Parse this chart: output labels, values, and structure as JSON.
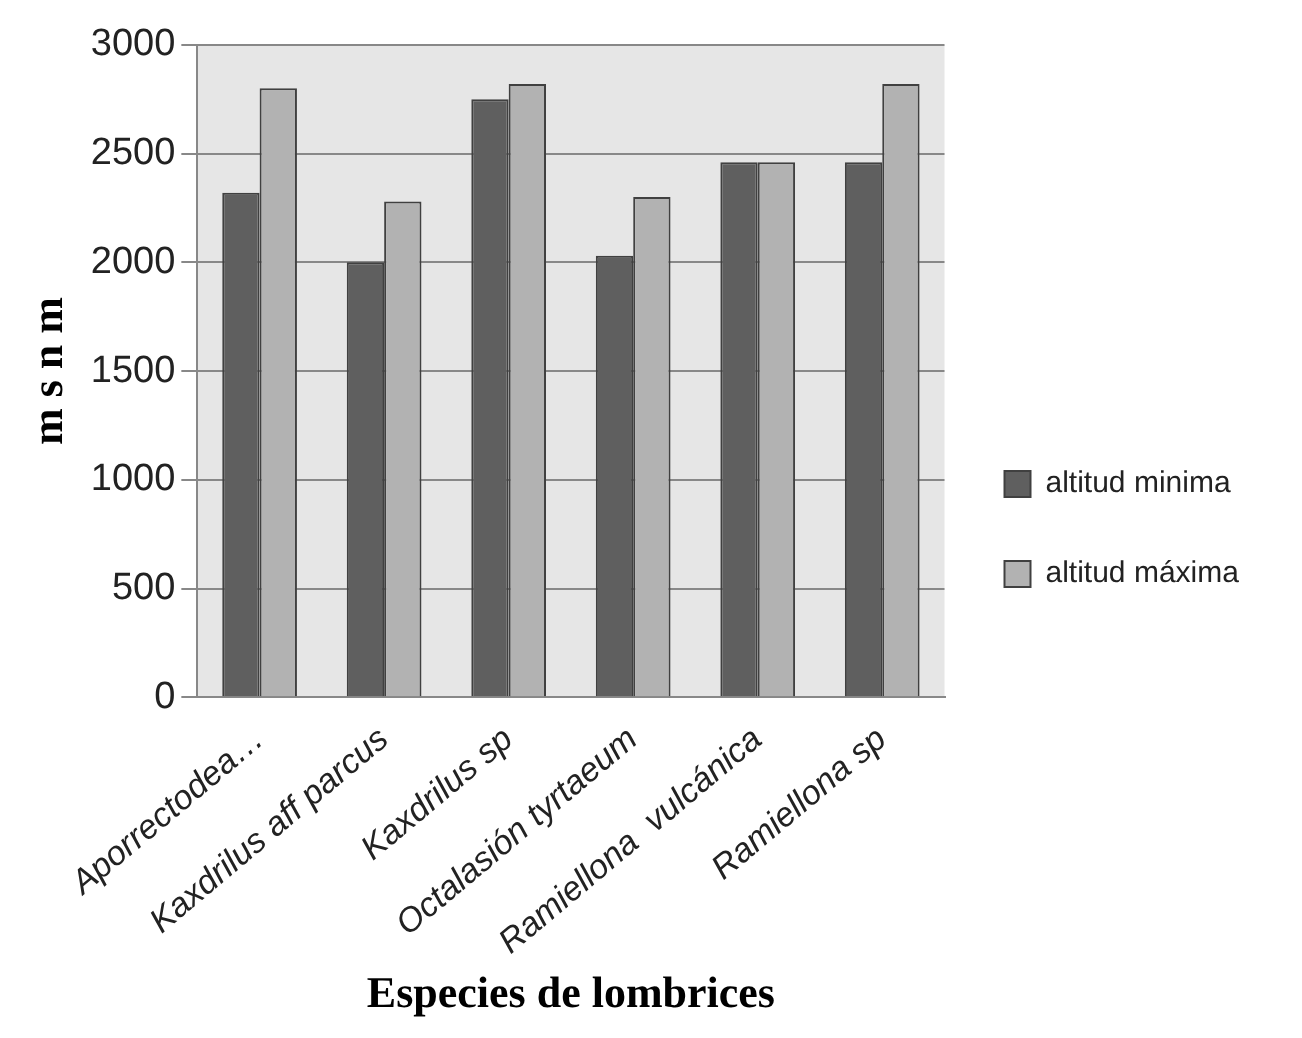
{
  "chart_data": {
    "type": "bar",
    "xlabel": "Especies de lombrices",
    "ylabel": "m s n m",
    "categories": [
      "Aporrectodea…",
      "Kaxdrilus aff parcus",
      "Kaxdrilus sp",
      "Octalasión tyrtaeum",
      "Ramiellona  vulcánica",
      "Ramiellona sp"
    ],
    "series": [
      {
        "name": "altitud minima",
        "color": "#5f5f5f",
        "values": [
          2320,
          2000,
          2750,
          2030,
          2460,
          2460
        ]
      },
      {
        "name": "altitud máxima",
        "color": "#b2b2b2",
        "values": [
          2800,
          2280,
          2820,
          2300,
          2460,
          2820
        ]
      }
    ],
    "ylim": [
      0,
      3000
    ],
    "yticks": [
      0,
      500,
      1000,
      1500,
      2000,
      2500,
      3000
    ],
    "grid": "y",
    "legend": "right"
  }
}
